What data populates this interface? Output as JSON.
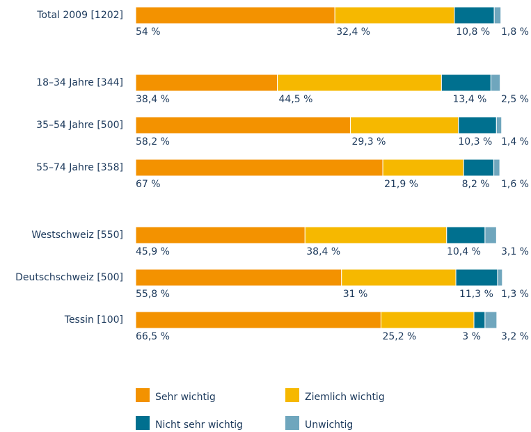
{
  "chart_data": {
    "type": "stacked-barh",
    "categories": [
      "Total 2009 [1202]",
      "18–34 Jahre [344]",
      "35–54 Jahre [500]",
      "55–74 Jahre [358]",
      "Westschweiz [550]",
      "Deutschschweiz [500]",
      "Tessin [100]"
    ],
    "series": [
      {
        "name": "Sehr wichtig",
        "color": "#f39200",
        "values": [
          54,
          38.4,
          58.2,
          67,
          45.9,
          55.8,
          66.5
        ],
        "value_labels": [
          "54 %",
          "38,4 %",
          "58,2 %",
          "67 %",
          "45,9 %",
          "55,8 %",
          "66,5 %"
        ]
      },
      {
        "name": "Ziemlich wichtig",
        "color": "#f6b800",
        "values": [
          32.4,
          44.5,
          29.3,
          21.9,
          38.4,
          31,
          25.2
        ],
        "value_labels": [
          "32,4 %",
          "44,5 %",
          "29,3 %",
          "21,9 %",
          "38,4 %",
          "31 %",
          "25,2 %"
        ]
      },
      {
        "name": "Nicht sehr wichtig",
        "color": "#00708f",
        "values": [
          10.8,
          13.4,
          10.3,
          8.2,
          10.4,
          11.3,
          3
        ],
        "value_labels": [
          "10,8 %",
          "13,4 %",
          "10,3 %",
          "8,2 %",
          "10,4 %",
          "11,3 %",
          "3 %"
        ]
      },
      {
        "name": "Unwichtig",
        "color": "#6fa6bd",
        "values": [
          1.8,
          2.5,
          1.4,
          1.6,
          3.1,
          1.3,
          3.2
        ],
        "value_labels": [
          "1,8 %",
          "2,5 %",
          "1,4 %",
          "1,6 %",
          "3,1 %",
          "1,3 %",
          "3,2 %"
        ]
      }
    ]
  }
}
